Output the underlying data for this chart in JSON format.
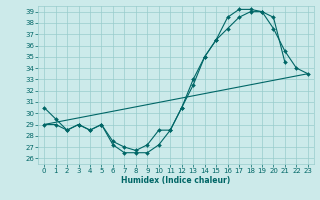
{
  "xlabel": "Humidex (Indice chaleur)",
  "bg_color": "#cceaea",
  "grid_color": "#99cccc",
  "line_color": "#006666",
  "xlim": [
    -0.5,
    23.5
  ],
  "ylim": [
    25.5,
    39.5
  ],
  "yticks": [
    26,
    27,
    28,
    29,
    30,
    31,
    32,
    33,
    34,
    35,
    36,
    37,
    38,
    39
  ],
  "xticks": [
    0,
    1,
    2,
    3,
    4,
    5,
    6,
    7,
    8,
    9,
    10,
    11,
    12,
    13,
    14,
    15,
    16,
    17,
    18,
    19,
    20,
    21,
    22,
    23
  ],
  "s1_x": [
    0,
    1,
    2,
    3,
    4,
    5,
    6,
    7,
    8,
    9,
    10,
    11,
    12,
    13,
    14,
    15,
    16,
    17,
    18,
    19,
    20,
    21
  ],
  "s1_y": [
    30.5,
    29.5,
    28.5,
    29.0,
    28.5,
    29.0,
    27.2,
    26.5,
    26.5,
    26.5,
    27.2,
    28.5,
    30.5,
    32.5,
    35.0,
    36.5,
    38.5,
    39.2,
    39.2,
    39.0,
    38.5,
    34.5
  ],
  "s2_x": [
    0,
    1,
    2,
    3,
    4,
    5,
    6,
    7,
    8,
    9,
    10,
    11,
    12,
    13,
    14,
    15,
    16,
    17,
    18,
    19,
    20,
    21,
    22,
    23
  ],
  "s2_y": [
    29.0,
    29.0,
    28.5,
    29.0,
    28.5,
    29.0,
    27.5,
    27.0,
    26.7,
    27.2,
    28.5,
    28.5,
    30.5,
    33.0,
    35.0,
    36.5,
    37.5,
    38.5,
    39.0,
    39.0,
    37.5,
    35.5,
    34.0,
    33.5
  ],
  "trend_x": [
    0,
    23
  ],
  "trend_y": [
    29.0,
    33.5
  ]
}
